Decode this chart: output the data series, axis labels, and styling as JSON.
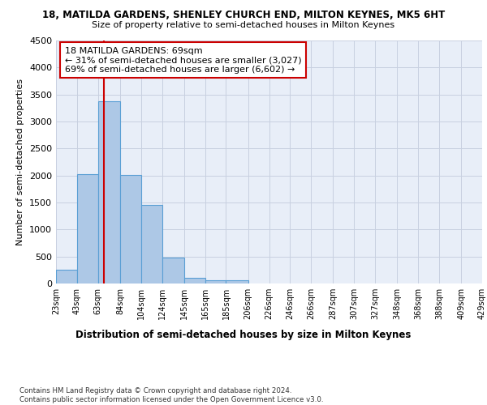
{
  "title_line1": "18, MATILDA GARDENS, SHENLEY CHURCH END, MILTON KEYNES, MK5 6HT",
  "title_line2": "Size of property relative to semi-detached houses in Milton Keynes",
  "xlabel": "Distribution of semi-detached houses by size in Milton Keynes",
  "ylabel": "Number of semi-detached properties",
  "footnote": "Contains HM Land Registry data © Crown copyright and database right 2024.\nContains public sector information licensed under the Open Government Licence v3.0.",
  "bar_left_edges": [
    23,
    43,
    63,
    84,
    104,
    124,
    145,
    165,
    185,
    206,
    226,
    246,
    266,
    287,
    307,
    327,
    348,
    368,
    388,
    409
  ],
  "bar_widths": [
    20,
    20,
    21,
    20,
    20,
    21,
    20,
    20,
    21,
    20,
    20,
    20,
    21,
    20,
    20,
    21,
    20,
    20,
    21,
    20
  ],
  "bar_heights": [
    250,
    2030,
    3370,
    2010,
    1460,
    480,
    100,
    65,
    60,
    0,
    0,
    0,
    0,
    0,
    0,
    0,
    0,
    0,
    0,
    0
  ],
  "bar_color": "#adc8e6",
  "bar_edgecolor": "#5a9fd4",
  "tick_labels": [
    "23sqm",
    "43sqm",
    "63sqm",
    "84sqm",
    "104sqm",
    "124sqm",
    "145sqm",
    "165sqm",
    "185sqm",
    "206sqm",
    "226sqm",
    "246sqm",
    "266sqm",
    "287sqm",
    "307sqm",
    "327sqm",
    "348sqm",
    "368sqm",
    "388sqm",
    "409sqm",
    "429sqm"
  ],
  "ylim": [
    0,
    4500
  ],
  "yticks": [
    0,
    500,
    1000,
    1500,
    2000,
    2500,
    3000,
    3500,
    4000,
    4500
  ],
  "property_size": 69,
  "vline_color": "#cc0000",
  "annotation_title": "18 MATILDA GARDENS: 69sqm",
  "annotation_line1": "← 31% of semi-detached houses are smaller (3,027)",
  "annotation_line2": "69% of semi-detached houses are larger (6,602) →",
  "annotation_box_color": "#ffffff",
  "annotation_box_edgecolor": "#cc0000",
  "background_color": "#e8eef8",
  "grid_color": "#c8d0e0"
}
